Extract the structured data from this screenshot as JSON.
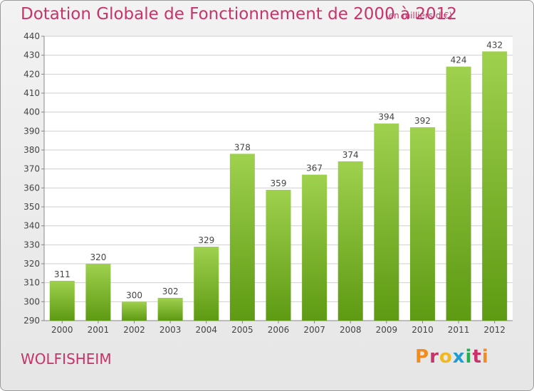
{
  "header": {
    "title": "Dotation Globale de Fonctionnement de 2000 à 2012",
    "unit": "(en milliers d'€)"
  },
  "footer": {
    "commune": "WOLFISHEIM",
    "logo": "Proxiti"
  },
  "colors": {
    "bar_light": "#9fd14e",
    "bar_dark": "#5e9a13",
    "text_accent": "#c8336a",
    "logo": [
      "#f28c1f",
      "#c8336a",
      "#f2b81f",
      "#1f9fd1",
      "#1fb14e",
      "#c8336a",
      "#f28c1f"
    ]
  },
  "chart_data": {
    "type": "bar",
    "title": "Dotation Globale de Fonctionnement de 2000 à 2012",
    "subtitle": "(en milliers d'€)",
    "xlabel": "",
    "ylabel": "",
    "categories": [
      "2000",
      "2001",
      "2002",
      "2003",
      "2004",
      "2005",
      "2006",
      "2007",
      "2008",
      "2009",
      "2010",
      "2011",
      "2012"
    ],
    "values": [
      311,
      320,
      300,
      302,
      329,
      378,
      359,
      367,
      374,
      394,
      392,
      424,
      432
    ],
    "ylim": [
      290,
      440
    ],
    "yticks": [
      290,
      300,
      310,
      320,
      330,
      340,
      350,
      360,
      370,
      380,
      390,
      400,
      410,
      420,
      430,
      440
    ],
    "grid": true,
    "legend": "none"
  }
}
